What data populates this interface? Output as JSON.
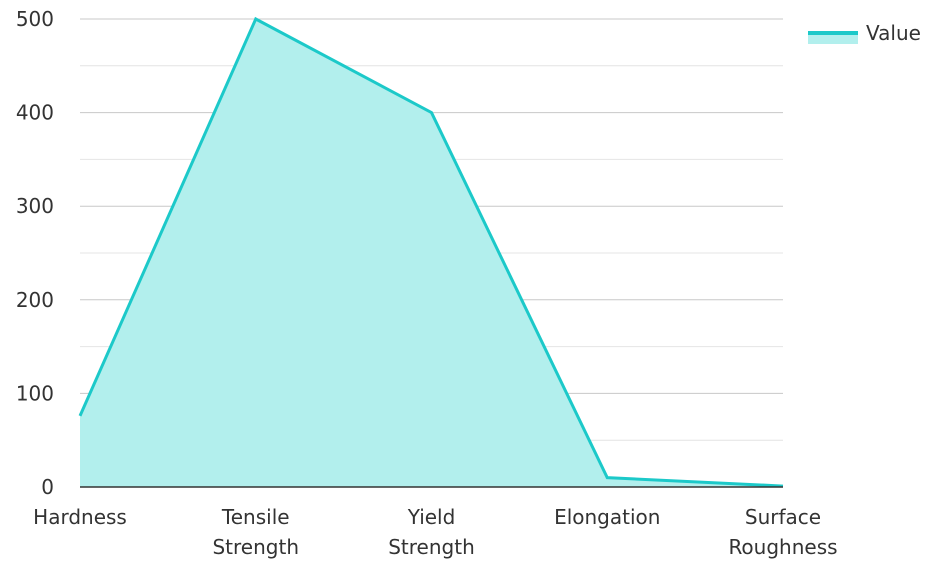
{
  "chart_data": {
    "type": "area",
    "categories": [
      [
        "Hardness"
      ],
      [
        "Tensile",
        "Strength"
      ],
      [
        "Yield",
        "Strength"
      ],
      [
        "Elongation"
      ],
      [
        "Surface",
        "Roughness"
      ]
    ],
    "series": [
      {
        "name": "Value",
        "values": [
          76,
          500,
          400,
          10,
          1
        ]
      }
    ],
    "y_ticks": [
      "0",
      "100",
      "200",
      "300",
      "400",
      "500"
    ],
    "ylim": [
      0,
      500
    ],
    "grid": true,
    "legend": {
      "position": "top-right",
      "label": "Value"
    },
    "colors": {
      "line": "#1cc9c9",
      "fill": "#b2efed",
      "grid_major": "#c8c8c8",
      "grid_minor": "#e4e4e4",
      "axis": "#333333",
      "text": "#333333"
    }
  }
}
